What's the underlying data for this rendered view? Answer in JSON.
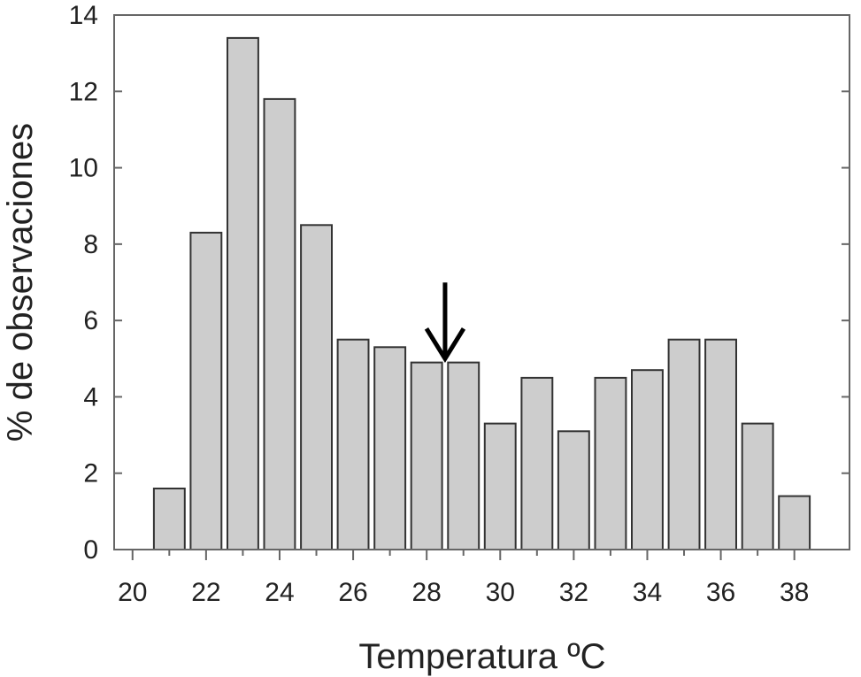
{
  "chart_data": {
    "type": "bar",
    "title": "",
    "xlabel": "Temperatura ºC",
    "ylabel": "% de observaciones",
    "xlim": [
      19.5,
      39.5
    ],
    "ylim": [
      0,
      14
    ],
    "x_ticks": [
      20,
      22,
      24,
      26,
      28,
      30,
      32,
      34,
      36,
      38
    ],
    "y_ticks": [
      0,
      2,
      4,
      6,
      8,
      10,
      12,
      14
    ],
    "x": [
      21,
      22,
      23,
      24,
      25,
      26,
      27,
      28,
      29,
      30,
      31,
      32,
      33,
      34,
      35,
      36,
      37,
      38
    ],
    "values": [
      1.6,
      8.3,
      13.4,
      11.8,
      8.5,
      5.5,
      5.3,
      4.9,
      4.9,
      3.3,
      4.5,
      3.1,
      4.5,
      4.7,
      5.5,
      5.5,
      3.3,
      1.4
    ],
    "bar_color": "#cdcdcd",
    "bar_edge_color": "#333333",
    "grid": false,
    "annotations": [
      {
        "type": "arrow-down",
        "x": 28.5,
        "y": 5.0
      }
    ]
  }
}
